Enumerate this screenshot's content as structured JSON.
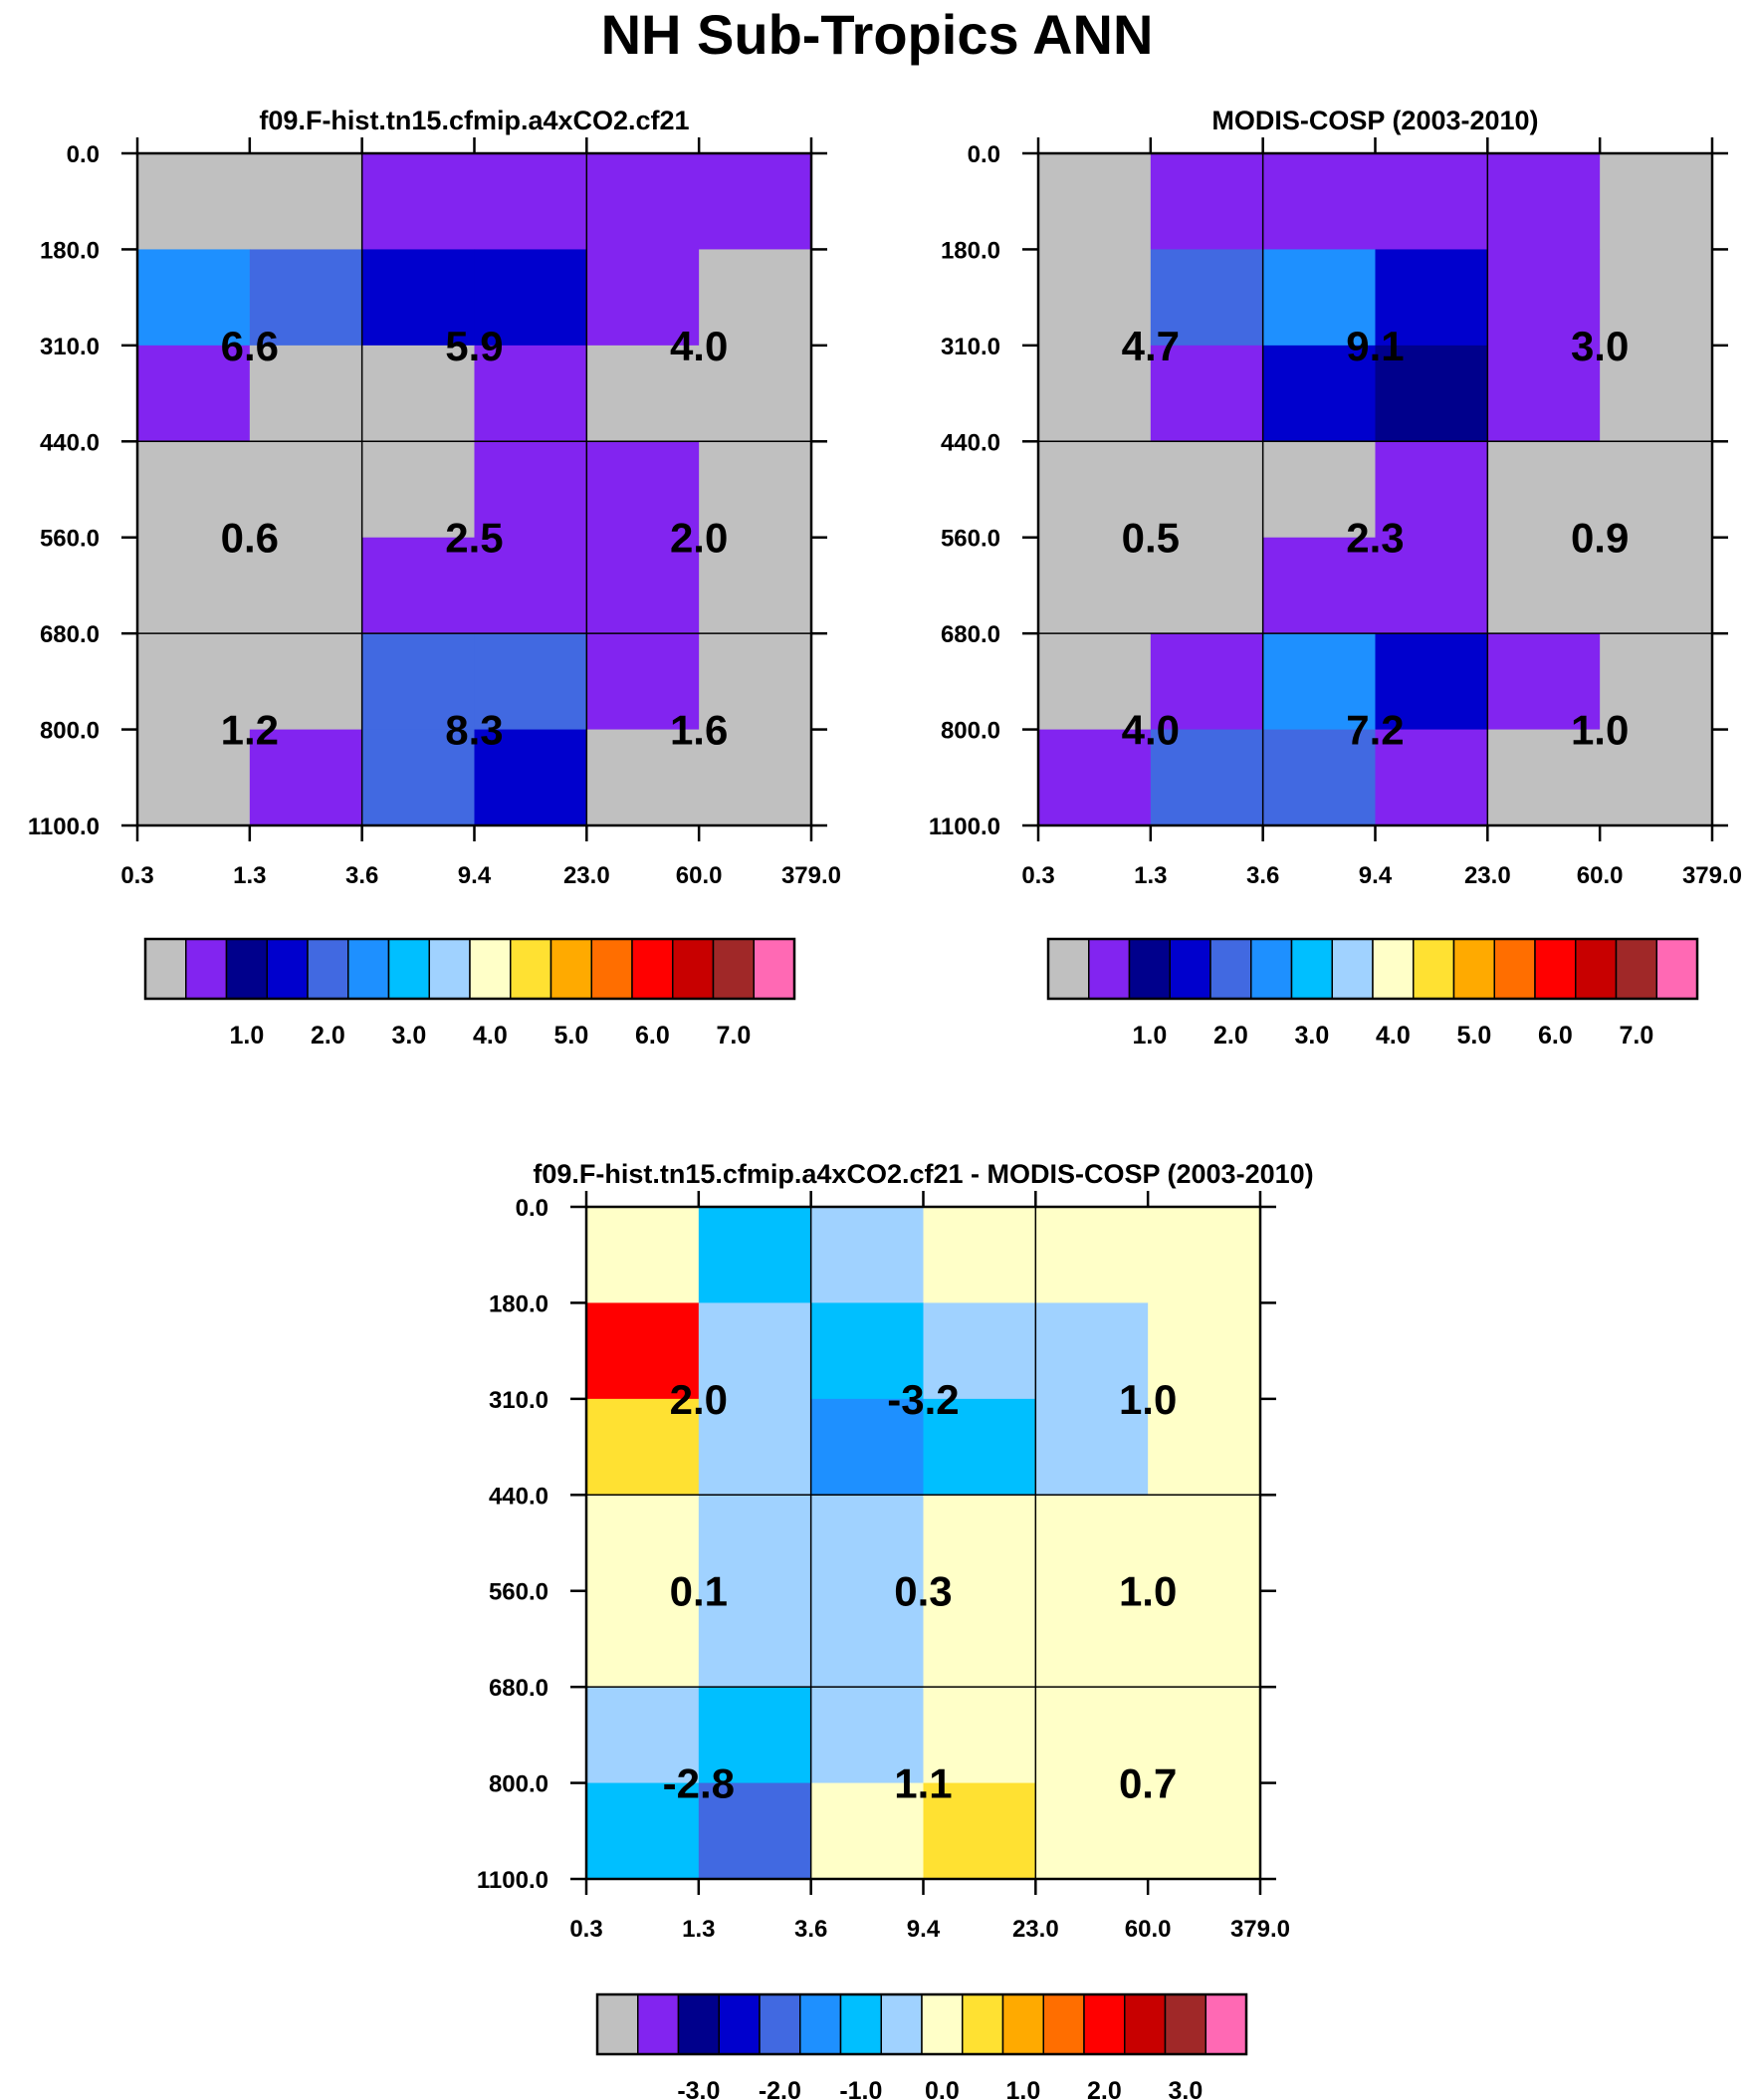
{
  "title": "NH Sub-Tropics ANN",
  "chart_data": {
    "type": "heatmap",
    "x_tick_labels": [
      "0.3",
      "1.3",
      "3.6",
      "9.4",
      "23.0",
      "60.0",
      "379.0"
    ],
    "y_tick_labels": [
      "0.0",
      "180.0",
      "310.0",
      "440.0",
      "560.0",
      "680.0",
      "800.0",
      "1100.0"
    ],
    "bins_note": "x = cloud optical thickness bins (0.3..379), y = cloud-top pressure bins (0..1100), rows listed top (0-180) to bottom (800-1100); cell value = index into colorbar colors",
    "colorbar_colors": [
      "#c0c0c0",
      "#8224f0",
      "#00008c",
      "#0000cd",
      "#4169e1",
      "#1e90ff",
      "#00bfff",
      "#a0d2ff",
      "#ffffc8",
      "#ffe132",
      "#ffaa00",
      "#ff6e00",
      "#ff0000",
      "#c80000",
      "#a02828",
      "#ff69b4"
    ],
    "panels": [
      {
        "title": "f09.F-hist.tn15.cfmip.a4xCO2.cf21",
        "colorbar_labels": [
          "1.0",
          "2.0",
          "3.0",
          "4.0",
          "5.0",
          "6.0",
          "7.0"
        ],
        "cells": [
          [
            0,
            0,
            1,
            1,
            1,
            1
          ],
          [
            5,
            4,
            3,
            3,
            1,
            0
          ],
          [
            1,
            0,
            0,
            1,
            0,
            0
          ],
          [
            0,
            0,
            0,
            1,
            1,
            0
          ],
          [
            0,
            0,
            1,
            1,
            1,
            0
          ],
          [
            0,
            0,
            4,
            4,
            1,
            0
          ],
          [
            0,
            1,
            4,
            3,
            0,
            0
          ]
        ],
        "block_values": [
          [
            "6.6",
            "5.9",
            "4.0"
          ],
          [
            "0.6",
            "2.5",
            "2.0"
          ],
          [
            "1.2",
            "8.3",
            "1.6"
          ]
        ]
      },
      {
        "title": "MODIS-COSP (2003-2010)",
        "colorbar_labels": [
          "1.0",
          "2.0",
          "3.0",
          "4.0",
          "5.0",
          "6.0",
          "7.0"
        ],
        "cells": [
          [
            0,
            1,
            1,
            1,
            1,
            0
          ],
          [
            0,
            4,
            5,
            3,
            1,
            0
          ],
          [
            0,
            1,
            3,
            2,
            1,
            0
          ],
          [
            0,
            0,
            0,
            1,
            0,
            0
          ],
          [
            0,
            0,
            1,
            1,
            0,
            0
          ],
          [
            0,
            1,
            5,
            3,
            1,
            0
          ],
          [
            1,
            4,
            4,
            1,
            0,
            0
          ]
        ],
        "block_values": [
          [
            "4.7",
            "9.1",
            "3.0"
          ],
          [
            "0.5",
            "2.3",
            "0.9"
          ],
          [
            "4.0",
            "7.2",
            "1.0"
          ]
        ]
      },
      {
        "title": "f09.F-hist.tn15.cfmip.a4xCO2.cf21 - MODIS-COSP (2003-2010)",
        "colorbar_labels": [
          "-3.0",
          "-2.0",
          "-1.0",
          "0.0",
          "1.0",
          "2.0",
          "3.0"
        ],
        "cells": [
          [
            8,
            6,
            7,
            8,
            8,
            8
          ],
          [
            12,
            7,
            6,
            7,
            7,
            8
          ],
          [
            9,
            7,
            5,
            6,
            7,
            8
          ],
          [
            8,
            7,
            7,
            8,
            8,
            8
          ],
          [
            8,
            7,
            7,
            8,
            8,
            8
          ],
          [
            7,
            6,
            7,
            8,
            8,
            8
          ],
          [
            6,
            4,
            8,
            9,
            8,
            8
          ]
        ],
        "block_values": [
          [
            "2.0",
            "-3.2",
            "1.0"
          ],
          [
            "0.1",
            "0.3",
            "1.0"
          ],
          [
            "-2.8",
            "1.1",
            "0.7"
          ]
        ]
      }
    ]
  }
}
